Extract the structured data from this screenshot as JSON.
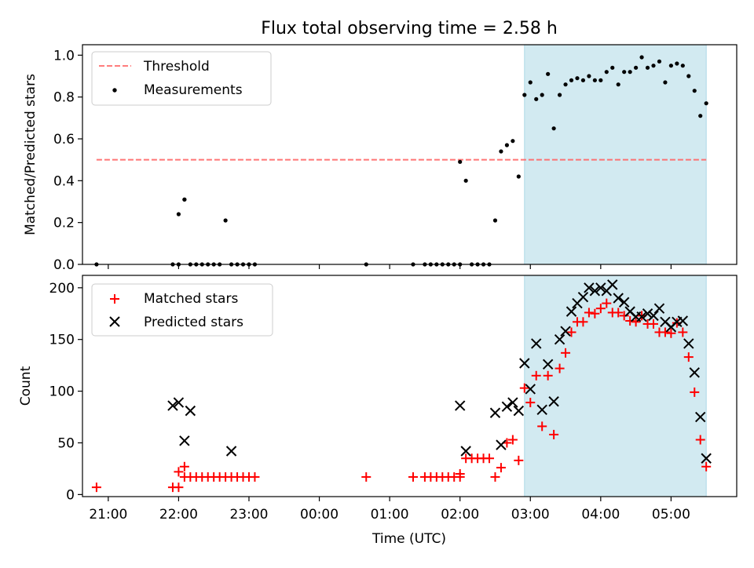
{
  "title": "Flux total observing time = 2.58 h",
  "shade_color": "#add8e6",
  "chart_data": [
    {
      "type": "scatter",
      "panel": "top",
      "ylabel": "Matched/Predicted stars",
      "xlim": [
        "20:38",
        "05:56"
      ],
      "ylim": [
        0,
        1.05
      ],
      "yticks": [
        "0.0",
        "0.2",
        "0.4",
        "0.6",
        "0.8",
        "1.0"
      ],
      "shaded_interval": [
        "02:55",
        "05:30"
      ],
      "legend_placement": "upper-left",
      "series": [
        {
          "name": "Threshold",
          "kind": "dashed-line",
          "color": "#ff6666",
          "x": [
            "20:50",
            "05:30"
          ],
          "y": [
            0.5,
            0.5
          ]
        },
        {
          "name": "Measurements",
          "kind": "points",
          "color": "#000000",
          "x": [
            "20:50",
            "21:55",
            "22:00",
            "22:05",
            "22:00",
            "22:05",
            "22:10",
            "22:15",
            "22:20",
            "22:25",
            "22:30",
            "22:35",
            "22:40",
            "22:45",
            "22:50",
            "22:55",
            "23:00",
            "23:05",
            "00:40",
            "01:20",
            "01:30",
            "01:35",
            "01:40",
            "01:45",
            "01:50",
            "01:55",
            "02:00",
            "02:00",
            "02:05",
            "02:10",
            "02:15",
            "02:20",
            "02:25",
            "02:30",
            "02:35",
            "02:40",
            "02:45",
            "02:50",
            "02:55",
            "03:00",
            "03:05",
            "03:10",
            "03:15",
            "03:20",
            "03:25",
            "03:30",
            "03:35",
            "03:40",
            "03:45",
            "03:50",
            "03:55",
            "04:00",
            "04:05",
            "04:10",
            "04:15",
            "04:20",
            "04:25",
            "04:30",
            "04:35",
            "04:40",
            "04:45",
            "04:50",
            "04:55",
            "05:00",
            "05:05",
            "05:10",
            "05:15",
            "05:20",
            "05:25",
            "05:30"
          ],
          "y": [
            0,
            0,
            0,
            0.31,
            0.24,
            0.31,
            0,
            0,
            0,
            0,
            0,
            0,
            0.21,
            0,
            0,
            0,
            0,
            0,
            0,
            0,
            0,
            0,
            0,
            0,
            0,
            0,
            0,
            0.49,
            0.4,
            0,
            0,
            0,
            0,
            0.21,
            0.54,
            0.57,
            0.59,
            0.42,
            0.81,
            0.87,
            0.79,
            0.81,
            0.91,
            0.65,
            0.81,
            0.86,
            0.88,
            0.89,
            0.88,
            0.9,
            0.88,
            0.88,
            0.92,
            0.94,
            0.86,
            0.92,
            0.92,
            0.94,
            0.99,
            0.94,
            0.95,
            0.97,
            0.87,
            0.95,
            0.96,
            0.95,
            0.9,
            0.83,
            0.71,
            0.77
          ]
        }
      ]
    },
    {
      "type": "scatter",
      "panel": "bottom",
      "xlabel": "Time (UTC)",
      "ylabel": "Count",
      "xlim": [
        "20:38",
        "05:56"
      ],
      "ylim": [
        -2,
        212
      ],
      "yticks": [
        "0",
        "50",
        "100",
        "150",
        "200"
      ],
      "xticks": [
        "21:00",
        "22:00",
        "23:00",
        "00:00",
        "01:00",
        "02:00",
        "03:00",
        "04:00",
        "05:00"
      ],
      "shaded_interval": [
        "02:55",
        "05:30"
      ],
      "legend_placement": "upper-left",
      "series": [
        {
          "name": "Matched stars",
          "kind": "plus",
          "color": "#ff0000",
          "x": [
            "20:50",
            "21:55",
            "22:00",
            "22:05",
            "22:00",
            "22:05",
            "22:10",
            "22:15",
            "22:20",
            "22:25",
            "22:30",
            "22:35",
            "22:40",
            "22:45",
            "22:50",
            "22:55",
            "23:00",
            "23:05",
            "00:40",
            "01:20",
            "01:30",
            "01:35",
            "01:40",
            "01:45",
            "01:50",
            "01:55",
            "02:00",
            "02:00",
            "02:05",
            "02:10",
            "02:15",
            "02:20",
            "02:25",
            "02:30",
            "02:35",
            "02:40",
            "02:45",
            "02:50",
            "02:55",
            "03:00",
            "03:05",
            "03:10",
            "03:15",
            "03:20",
            "03:25",
            "03:30",
            "03:35",
            "03:40",
            "03:45",
            "03:50",
            "03:55",
            "04:00",
            "04:05",
            "04:10",
            "04:15",
            "04:20",
            "04:25",
            "04:30",
            "04:35",
            "04:40",
            "04:45",
            "04:50",
            "04:55",
            "05:00",
            "05:05",
            "05:10",
            "05:15",
            "05:20",
            "05:25",
            "05:30"
          ],
          "y": [
            7,
            7,
            7,
            27,
            22,
            17,
            17,
            17,
            17,
            17,
            17,
            17,
            17,
            17,
            17,
            17,
            17,
            17,
            17,
            17,
            17,
            17,
            17,
            17,
            17,
            17,
            17,
            20,
            35,
            35,
            35,
            35,
            35,
            17,
            26,
            50,
            53,
            33,
            103,
            89,
            115,
            66,
            115,
            58,
            122,
            137,
            157,
            167,
            167,
            176,
            175,
            180,
            185,
            176,
            176,
            173,
            168,
            167,
            173,
            165,
            165,
            157,
            157,
            156,
            166,
            157,
            133,
            99,
            53,
            27
          ]
        },
        {
          "name": "Predicted stars",
          "kind": "cross",
          "color": "#000000",
          "x": [
            "21:55",
            "22:00",
            "22:05",
            "22:10",
            "22:45",
            "02:00",
            "02:05",
            "02:30",
            "02:35",
            "02:40",
            "02:45",
            "02:50",
            "02:55",
            "03:00",
            "03:05",
            "03:10",
            "03:15",
            "03:20",
            "03:25",
            "03:30",
            "03:35",
            "03:40",
            "03:45",
            "03:50",
            "03:55",
            "04:00",
            "04:05",
            "04:10",
            "04:15",
            "04:20",
            "04:25",
            "04:30",
            "04:35",
            "04:40",
            "04:45",
            "04:50",
            "04:55",
            "05:00",
            "05:05",
            "05:10",
            "05:15",
            "05:20",
            "05:25",
            "05:30"
          ],
          "y": [
            86,
            89,
            52,
            81,
            42,
            86,
            42,
            79,
            48,
            85,
            89,
            81,
            127,
            102,
            146,
            82,
            126,
            90,
            150,
            158,
            177,
            185,
            191,
            200,
            197,
            200,
            197,
            203,
            190,
            186,
            177,
            172,
            172,
            175,
            173,
            180,
            167,
            162,
            167,
            168,
            146,
            118,
            75,
            35
          ]
        }
      ]
    }
  ]
}
